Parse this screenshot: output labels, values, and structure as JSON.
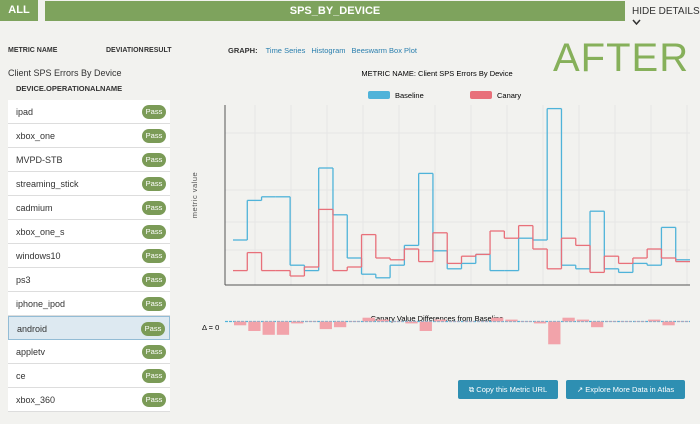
{
  "header": {
    "tab": "ALL",
    "title": "SPS_BY_DEVICE",
    "toggle": "HIDE DETAILS"
  },
  "sidebar": {
    "columns": [
      "METRIC NAME",
      "DEVIATION",
      "RESULT"
    ],
    "metric": "Client SPS Errors By Device",
    "dimension": "DEVICE.OPERATIONALNAME",
    "rows": [
      {
        "name": "ipad",
        "result": "Pass"
      },
      {
        "name": "xbox_one",
        "result": "Pass"
      },
      {
        "name": "MVPD-STB",
        "result": "Pass"
      },
      {
        "name": "streaming_stick",
        "result": "Pass"
      },
      {
        "name": "cadmium",
        "result": "Pass"
      },
      {
        "name": "xbox_one_s",
        "result": "Pass"
      },
      {
        "name": "windows10",
        "result": "Pass"
      },
      {
        "name": "ps3",
        "result": "Pass"
      },
      {
        "name": "iphone_ipod",
        "result": "Pass"
      },
      {
        "name": "android",
        "result": "Pass",
        "selected": true
      },
      {
        "name": "appletv",
        "result": "Pass"
      },
      {
        "name": "ce",
        "result": "Pass"
      },
      {
        "name": "xbox_360",
        "result": "Pass"
      }
    ]
  },
  "graph": {
    "label": "GRAPH:",
    "views": [
      "Time Series",
      "Histogram",
      "Beeswarm Box Plot"
    ],
    "stamp": "AFTER"
  },
  "chart": {
    "type": "line",
    "title": "METRIC NAME: Client SPS Errors By Device",
    "y_label": "metric value",
    "ylim": [
      0,
      100
    ],
    "series": [
      {
        "name": "Baseline",
        "color": "#4fb3d9",
        "values": [
          25,
          47,
          49,
          49,
          11,
          8,
          65,
          39,
          15,
          6,
          4,
          11,
          22,
          62,
          19,
          9,
          12,
          17,
          8,
          8,
          26,
          25,
          98,
          11,
          9,
          41,
          9,
          7,
          12,
          11,
          32,
          14
        ]
      },
      {
        "name": "Canary",
        "color": "#e8707a",
        "values": [
          8,
          18,
          8,
          8,
          5,
          10,
          42,
          8,
          10,
          28,
          15,
          14,
          20,
          13,
          29,
          12,
          16,
          17,
          30,
          26,
          33,
          20,
          9,
          26,
          22,
          7,
          16,
          12,
          15,
          20,
          15,
          13
        ]
      }
    ]
  },
  "diff_chart": {
    "type": "bar",
    "title": "Canary Value Differences from Baseline",
    "zero_label": "Δ = 0",
    "ylim": [
      -15,
      5
    ],
    "color": "#f2a3aa",
    "values": [
      -2,
      -5,
      -7,
      -7,
      -1,
      0,
      -4,
      -3,
      0,
      2,
      1,
      0,
      -1,
      -5,
      1,
      0,
      0,
      0,
      2,
      1,
      0,
      -1,
      -12,
      2,
      1,
      -3,
      0,
      0,
      0,
      1,
      -2,
      0
    ]
  },
  "buttons": [
    "Copy this Metric URL",
    "Explore More Data in Atlas"
  ]
}
